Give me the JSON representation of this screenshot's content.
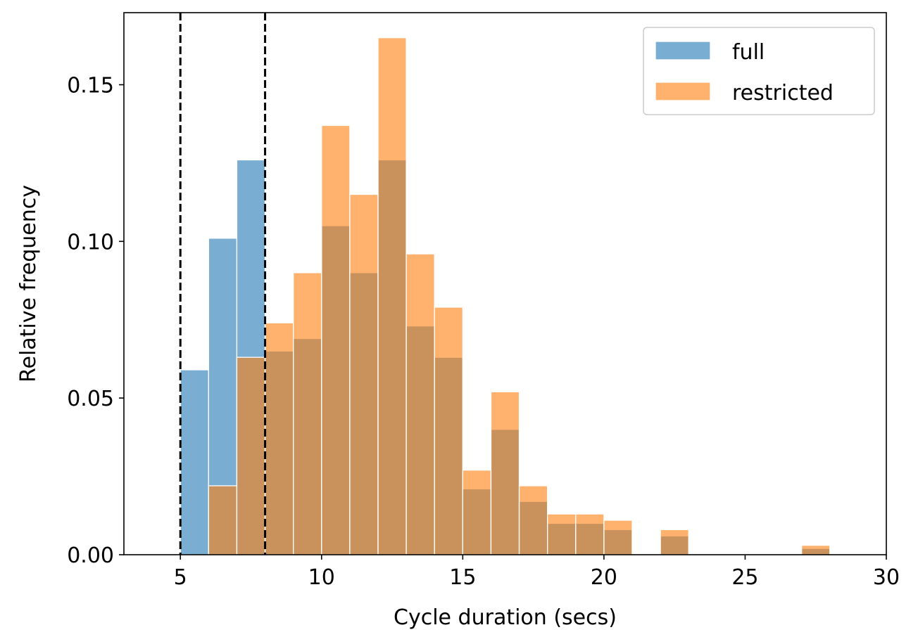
{
  "chart_data": {
    "type": "bar",
    "xlabel": "Cycle duration (secs)",
    "ylabel": "Relative frequency",
    "xlim": [
      3,
      30
    ],
    "ylim": [
      0,
      0.173
    ],
    "xticks": [
      5,
      10,
      15,
      20,
      25,
      30
    ],
    "xtick_labels": [
      "5",
      "10",
      "15",
      "20",
      "25",
      "30"
    ],
    "yticks": [
      0.0,
      0.05,
      0.1,
      0.15
    ],
    "ytick_labels": [
      "0.00",
      "0.05",
      "0.10",
      "0.15"
    ],
    "grid": false,
    "legend_position": "top-right",
    "vlines": [
      5,
      8
    ],
    "vline_style": "dashed",
    "bin_width": 1,
    "series": [
      {
        "name": "full",
        "color": "#1f77b4",
        "bins": [
          {
            "start": 5,
            "value": 0.059
          },
          {
            "start": 6,
            "value": 0.101
          },
          {
            "start": 7,
            "value": 0.126
          },
          {
            "start": 8,
            "value": 0.065
          },
          {
            "start": 9,
            "value": 0.069
          },
          {
            "start": 10,
            "value": 0.105
          },
          {
            "start": 11,
            "value": 0.09
          },
          {
            "start": 12,
            "value": 0.126
          },
          {
            "start": 13,
            "value": 0.073
          },
          {
            "start": 14,
            "value": 0.063
          },
          {
            "start": 15,
            "value": 0.021
          },
          {
            "start": 16,
            "value": 0.04
          },
          {
            "start": 17,
            "value": 0.017
          },
          {
            "start": 18,
            "value": 0.01
          },
          {
            "start": 19,
            "value": 0.01
          },
          {
            "start": 20,
            "value": 0.008
          },
          {
            "start": 22,
            "value": 0.006
          },
          {
            "start": 27,
            "value": 0.002
          }
        ]
      },
      {
        "name": "restricted",
        "color": "#ff7f0e",
        "bins": [
          {
            "start": 6,
            "value": 0.022
          },
          {
            "start": 7,
            "value": 0.063
          },
          {
            "start": 8,
            "value": 0.074
          },
          {
            "start": 9,
            "value": 0.09
          },
          {
            "start": 10,
            "value": 0.137
          },
          {
            "start": 11,
            "value": 0.115
          },
          {
            "start": 12,
            "value": 0.165
          },
          {
            "start": 13,
            "value": 0.096
          },
          {
            "start": 14,
            "value": 0.079
          },
          {
            "start": 15,
            "value": 0.027
          },
          {
            "start": 16,
            "value": 0.052
          },
          {
            "start": 17,
            "value": 0.022
          },
          {
            "start": 18,
            "value": 0.013
          },
          {
            "start": 19,
            "value": 0.013
          },
          {
            "start": 20,
            "value": 0.011
          },
          {
            "start": 22,
            "value": 0.008
          },
          {
            "start": 27,
            "value": 0.003
          }
        ]
      }
    ]
  }
}
